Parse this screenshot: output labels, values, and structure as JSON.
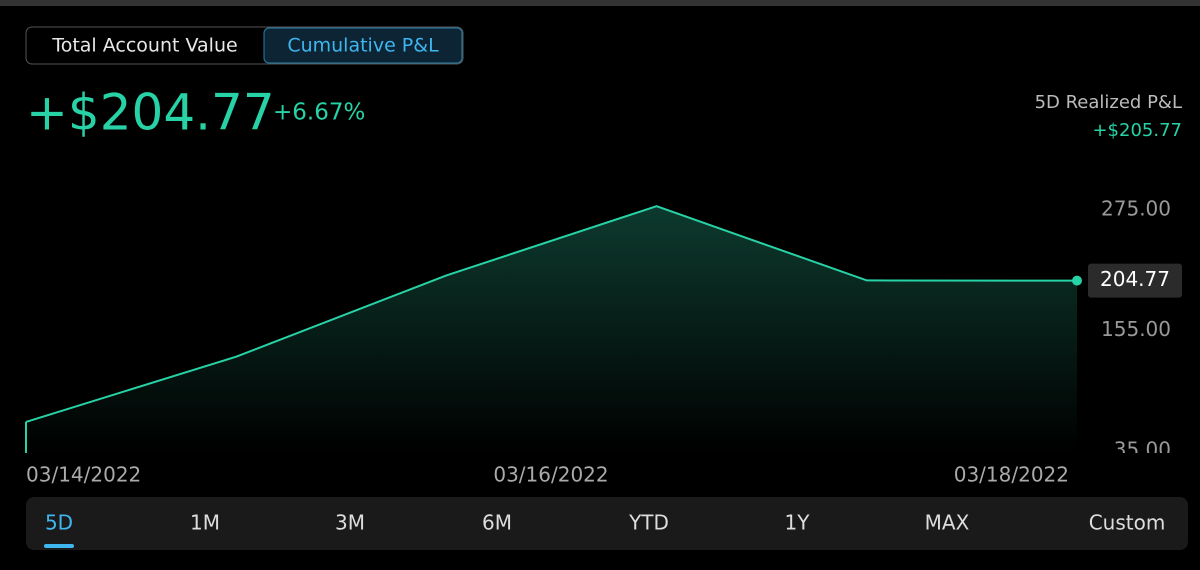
{
  "view_toggle": {
    "options": [
      "Total Account Value",
      "Cumulative P&L"
    ],
    "active": 1
  },
  "headline": {
    "value": "+$204.77",
    "change": "+6.67%"
  },
  "realized": {
    "label": "5D Realized P&L",
    "value": "+$205.77"
  },
  "chart_data": {
    "type": "line",
    "color": "#27d3a6",
    "values": [
      64,
      129,
      210,
      279,
      205,
      204.77
    ],
    "value_labels": [
      null,
      null,
      null,
      null,
      null,
      "204.77"
    ],
    "ylim": [
      33,
      330
    ],
    "yticks": [
      {
        "value": 35,
        "label": "35.00"
      },
      {
        "value": 155,
        "label": "155.00"
      },
      {
        "value": 275,
        "label": "275.00"
      }
    ],
    "xticks": [
      "03/14/2022",
      "03/16/2022",
      "03/18/2022"
    ]
  },
  "range_tabs": {
    "options": [
      "5D",
      "1M",
      "3M",
      "6M",
      "YTD",
      "1Y",
      "MAX",
      "Custom"
    ],
    "active": 0
  }
}
